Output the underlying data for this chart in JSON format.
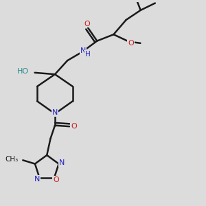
{
  "bg_color": "#dcdcdc",
  "bond_color": "#1a1a1a",
  "bond_width": 1.8,
  "N_color": "#2020cc",
  "O_color": "#cc2020",
  "HO_color": "#2a8a8a",
  "label_fontsize": 8.0,
  "figsize": [
    3.0,
    3.0
  ],
  "dpi": 100,
  "xlim": [
    0,
    10
  ],
  "ylim": [
    0,
    10
  ]
}
